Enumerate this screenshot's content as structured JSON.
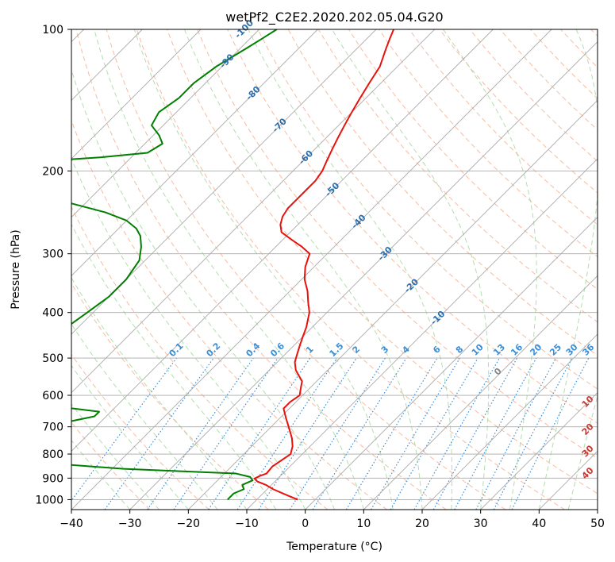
{
  "chart_data": {
    "type": "line",
    "title": "wetPf2_C2E2.2020.202.05.04.G20",
    "xlabel": "Temperature (°C)",
    "ylabel": "Pressure (hPa)",
    "xlim": [
      -40,
      50
    ],
    "ylim": [
      1050,
      100
    ],
    "y_scale": "log",
    "skew": true,
    "grid": true,
    "x_ticks": [
      "−40",
      "−30",
      "−20",
      "−10",
      "0",
      "10",
      "20",
      "30",
      "40",
      "50"
    ],
    "y_ticks": [
      "100",
      "200",
      "300",
      "400",
      "500",
      "600",
      "700",
      "800",
      "900",
      "1000"
    ],
    "colors": {
      "temperature": "#e8120c",
      "dewpoint": "#007f00",
      "isotherm": "#aaaaaa",
      "dry_adiabat": "#f4a582",
      "moist_adiabat": "#a6d7a1",
      "mixing_ratio": "#3a8fd8",
      "label_blue": "#2a6ead",
      "label_red": "#c63a32",
      "label_gray": "#888888"
    },
    "series": [
      {
        "name": "",
        "role": "temperature",
        "p": [
          1000,
          975,
          950,
          930,
          915,
          902,
          890,
          880,
          850,
          800,
          770,
          740,
          700,
          670,
          640,
          620,
          600,
          580,
          560,
          545,
          530,
          510,
          490,
          470,
          450,
          430,
          400,
          380,
          360,
          340,
          320,
          300,
          290,
          280,
          270,
          260,
          250,
          240,
          230,
          220,
          210,
          200,
          190,
          180,
          170,
          160,
          150,
          140,
          130,
          120,
          110,
          105,
          100
        ],
        "t": [
          -3,
          -6,
          -9,
          -11,
          -13,
          -14,
          -13.5,
          -12.8,
          -13,
          -12,
          -13,
          -14.5,
          -17,
          -19,
          -21,
          -21,
          -20.5,
          -21.5,
          -22.5,
          -24,
          -25.5,
          -27,
          -28,
          -29,
          -30,
          -31,
          -33,
          -35,
          -37,
          -39.5,
          -41.5,
          -43,
          -45.5,
          -48.5,
          -51.5,
          -53,
          -54,
          -54.5,
          -54.5,
          -54.5,
          -54.5,
          -55,
          -56,
          -57,
          -58,
          -59,
          -60,
          -61,
          -62,
          -63,
          -65,
          -66,
          -67
        ]
      },
      {
        "name": "",
        "role": "dewpoint",
        "p": [
          1000,
          970,
          950,
          930,
          910,
          895,
          880,
          870,
          860,
          840,
          820,
          800,
          780,
          770,
          765,
          760,
          750,
          740,
          720,
          700,
          680,
          665,
          650,
          640,
          625,
          610,
          600,
          595,
          590,
          585,
          575,
          560,
          545,
          530,
          510,
          490,
          470,
          450,
          430,
          400,
          370,
          340,
          310,
          290,
          275,
          265,
          255,
          245,
          235,
          225,
          218,
          213,
          205,
          200,
          195,
          190,
          187,
          183,
          175,
          168,
          160,
          150,
          140,
          130,
          120,
          110,
          105,
          100
        ],
        "t": [
          -15,
          -15,
          -14,
          -15,
          -14,
          -15,
          -18,
          -28,
          -38,
          -50,
          -59,
          -62,
          -66,
          -69,
          -70,
          -70,
          -68,
          -67,
          -63,
          -60,
          -55,
          -52,
          -52,
          -57,
          -65,
          -75,
          -80,
          -80,
          -78,
          -72,
          -67,
          -65,
          -65,
          -66,
          -68,
          -70,
          -72,
          -74,
          -72,
          -71,
          -70,
          -70,
          -71,
          -73,
          -75,
          -77,
          -80,
          -85,
          -92,
          -99,
          -104,
          -105,
          -106,
          -106,
          -105,
          -103,
          -95,
          -88,
          -87,
          -89,
          -92,
          -93,
          -92,
          -92,
          -91,
          -89,
          -88,
          -87
        ]
      }
    ],
    "isopleth_labels": {
      "mixing_ratio": [
        "0.1",
        "0.2",
        "0.4",
        "0.6",
        "1",
        "1.5",
        "2",
        "3",
        "4",
        "6",
        "8",
        "10",
        "13",
        "16",
        "20",
        "25",
        "30",
        "36"
      ],
      "wet_bulb_blue": [
        "-100",
        "-90",
        "-80",
        "-70",
        "-60",
        "-50",
        "-40",
        "-30",
        "-20",
        "-10"
      ],
      "wet_bulb_gray": [
        "0"
      ],
      "wet_bulb_red": [
        "10",
        "20",
        "30",
        "40"
      ]
    }
  }
}
